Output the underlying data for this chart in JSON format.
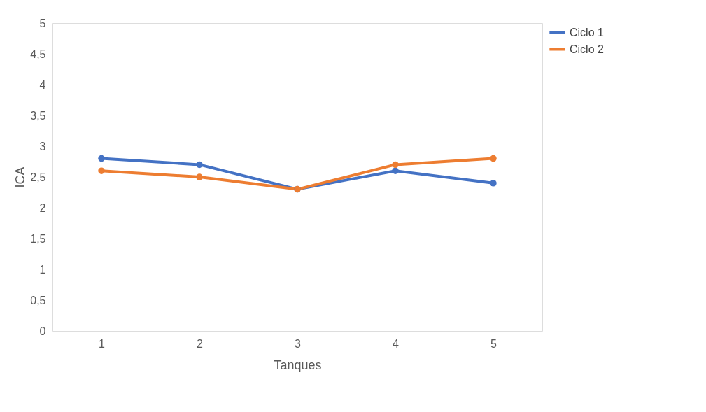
{
  "chart_data": {
    "type": "line",
    "xlabel": "Tanques",
    "ylabel": "ICA",
    "categories": [
      "1",
      "2",
      "3",
      "4",
      "5"
    ],
    "series": [
      {
        "name": "Ciclo 1",
        "color": "#4472c4",
        "values": [
          2.8,
          2.7,
          2.3,
          2.6,
          2.4
        ]
      },
      {
        "name": "Ciclo 2",
        "color": "#ed7d31",
        "values": [
          2.6,
          2.5,
          2.3,
          2.7,
          2.8
        ]
      }
    ],
    "ylim": [
      0,
      5
    ],
    "yticks": [
      0,
      {
        "value": 0.5,
        "label": "0,5"
      },
      1,
      {
        "value": 1.5,
        "label": "1,5"
      },
      2,
      {
        "value": 2.5,
        "label": "2,5"
      },
      3,
      {
        "value": 3.5,
        "label": "3,5"
      },
      4,
      {
        "value": 4.5,
        "label": "4,5"
      },
      5
    ],
    "grid": false,
    "legend": "right",
    "marker": "circle",
    "line_style": "solid"
  }
}
